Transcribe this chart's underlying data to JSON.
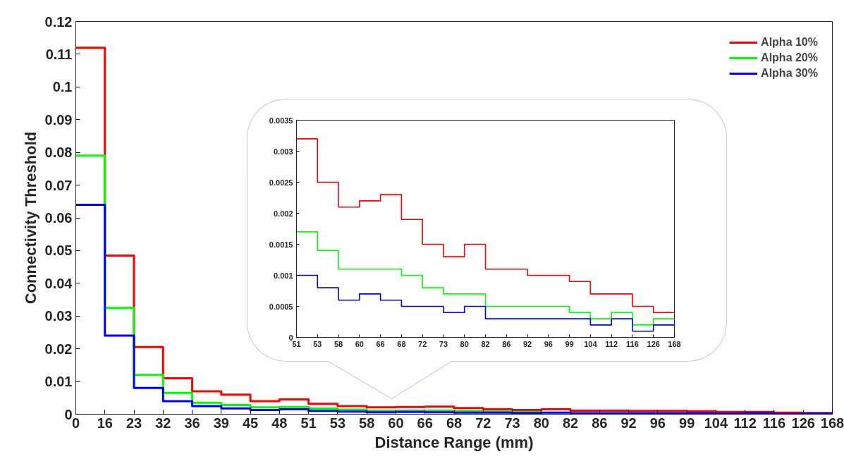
{
  "chart_data": [
    {
      "type": "step",
      "xlabel": "Distance Range (mm)",
      "ylabel": "Connectivity Threshold",
      "legend": "top right",
      "grid": false,
      "categories": [
        "0",
        "16",
        "23",
        "32",
        "36",
        "39",
        "45",
        "48",
        "51",
        "53",
        "58",
        "60",
        "66",
        "68",
        "72",
        "73",
        "80",
        "82",
        "86",
        "92",
        "96",
        "99",
        "104",
        "112",
        "116",
        "126",
        "168"
      ],
      "ylim": [
        0,
        0.12
      ],
      "yticks": [
        0,
        0.01,
        0.02,
        0.03,
        0.04,
        0.05,
        0.06,
        0.07,
        0.08,
        0.09,
        0.1,
        0.11,
        0.12
      ],
      "series": [
        {
          "name": "Alpha 10%",
          "color": "#ff0000",
          "values": [
            0.112,
            0.0485,
            0.0205,
            0.011,
            0.007,
            0.006,
            0.004,
            0.0045,
            0.0032,
            0.0025,
            0.0021,
            0.0022,
            0.0023,
            0.0019,
            0.0015,
            0.0013,
            0.0015,
            0.0011,
            0.0011,
            0.001,
            0.001,
            0.0009,
            0.0007,
            0.0007,
            0.0005,
            0.0004,
            0.0004
          ]
        },
        {
          "name": "Alpha 20%",
          "color": "#00ff00",
          "values": [
            0.079,
            0.0325,
            0.012,
            0.0065,
            0.0035,
            0.0028,
            0.0021,
            0.0022,
            0.0017,
            0.0014,
            0.0011,
            0.0011,
            0.0011,
            0.001,
            0.0008,
            0.0007,
            0.0007,
            null,
            null,
            null,
            null,
            null,
            null,
            null,
            null,
            null,
            null
          ]
        },
        {
          "name": "Alpha 30%",
          "color": "#0000ff",
          "values": [
            0.064,
            0.024,
            0.008,
            0.004,
            0.0025,
            0.0018,
            0.0013,
            0.0015,
            0.001,
            0.0008,
            0.0006,
            0.0007,
            0.0006,
            0.0005,
            0.0005,
            0.0004,
            0.0005,
            0.0003,
            0.0003,
            0.0003,
            0.0003,
            0.0003,
            0.0002,
            0.0003,
            0.0001,
            0.0002,
            0.0002
          ]
        }
      ]
    },
    {
      "type": "step",
      "grid": false,
      "categories": [
        "51",
        "53",
        "58",
        "60",
        "66",
        "68",
        "72",
        "73",
        "80",
        "82",
        "86",
        "92",
        "96",
        "99",
        "104",
        "112",
        "116",
        "126",
        "168"
      ],
      "ylim": [
        0,
        0.0035
      ],
      "yticks": [
        0,
        0.0005,
        0.001,
        0.0015,
        0.002,
        0.0025,
        0.003,
        0.0035
      ],
      "series": [
        {
          "color": "#ff0000",
          "values": [
            0.0032,
            0.0025,
            0.0021,
            0.0022,
            0.0023,
            0.0019,
            0.0015,
            0.0013,
            0.0015,
            0.0011,
            0.0011,
            0.001,
            0.001,
            0.0009,
            0.0007,
            0.0007,
            0.0005,
            0.0004,
            0.0004
          ]
        },
        {
          "color": "#00ff00",
          "values": [
            0.0017,
            0.0014,
            0.0011,
            0.0011,
            0.0011,
            0.001,
            0.0008,
            0.0007,
            0.0007,
            0.0005,
            0.0005,
            0.0005,
            0.0005,
            0.0004,
            0.0003,
            0.0004,
            0.0002,
            0.0003,
            0.0003
          ]
        },
        {
          "color": "#0000ff",
          "values": [
            0.001,
            0.0008,
            0.0006,
            0.0007,
            0.0006,
            0.0005,
            0.0005,
            0.0004,
            0.0005,
            0.0003,
            0.0003,
            0.0003,
            0.0003,
            0.0003,
            0.0002,
            0.0003,
            0.0001,
            0.0002,
            0.0002
          ]
        }
      ]
    }
  ]
}
